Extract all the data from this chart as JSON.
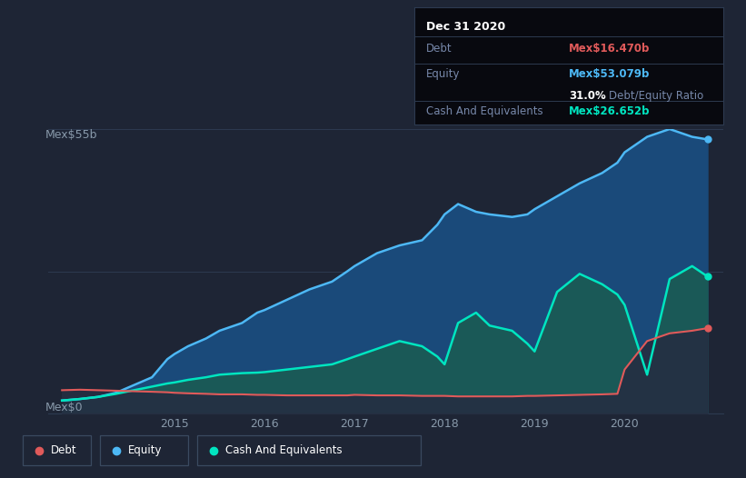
{
  "bg_color": "#1e2535",
  "plot_bg_color": "#1e2535",
  "ylabel_top": "Mex$55b",
  "ylabel_bottom": "Mex$0",
  "x_ticks": [
    2015,
    2016,
    2017,
    2018,
    2019,
    2020
  ],
  "ylim": [
    0,
    55
  ],
  "xlim_start": 2013.6,
  "xlim_end": 2021.1,
  "equity_color": "#4db8f5",
  "equity_fill": "#1a4a7a",
  "debt_color": "#e05a5a",
  "debt_fill": "#2a2035",
  "cash_color": "#00e5c0",
  "cash_fill": "#1a5a55",
  "grid_color": "#2d3a50",
  "tooltip": {
    "date": "Dec 31 2020",
    "debt_label": "Debt",
    "debt_value": "Mex$16.470b",
    "equity_label": "Equity",
    "equity_value": "Mex$53.079b",
    "ratio": "31.0%",
    "ratio_label": "Debt/Equity Ratio",
    "cash_label": "Cash And Equivalents",
    "cash_value": "Mex$26.652b"
  },
  "time_points": [
    2013.75,
    2013.95,
    2014.15,
    2014.35,
    2014.55,
    2014.75,
    2014.92,
    2015.0,
    2015.15,
    2015.35,
    2015.5,
    2015.75,
    2015.92,
    2016.0,
    2016.25,
    2016.5,
    2016.75,
    2016.92,
    2017.0,
    2017.25,
    2017.5,
    2017.75,
    2017.92,
    2018.0,
    2018.15,
    2018.35,
    2018.5,
    2018.75,
    2018.92,
    2019.0,
    2019.25,
    2019.5,
    2019.75,
    2019.92,
    2020.0,
    2020.25,
    2020.5,
    2020.75,
    2020.92
  ],
  "equity_data": [
    2.5,
    2.8,
    3.2,
    4.0,
    5.5,
    7.0,
    10.5,
    11.5,
    13.0,
    14.5,
    16.0,
    17.5,
    19.5,
    20.0,
    22.0,
    24.0,
    25.5,
    27.5,
    28.5,
    31.0,
    32.5,
    33.5,
    36.5,
    38.5,
    40.5,
    39.0,
    38.5,
    38.0,
    38.5,
    39.5,
    42.0,
    44.5,
    46.5,
    48.5,
    50.5,
    53.5,
    55.0,
    53.5,
    53.0
  ],
  "debt_data": [
    4.5,
    4.6,
    4.5,
    4.4,
    4.3,
    4.2,
    4.1,
    4.0,
    3.9,
    3.8,
    3.7,
    3.7,
    3.6,
    3.6,
    3.5,
    3.5,
    3.5,
    3.5,
    3.6,
    3.5,
    3.5,
    3.4,
    3.4,
    3.4,
    3.3,
    3.3,
    3.3,
    3.3,
    3.4,
    3.4,
    3.5,
    3.6,
    3.7,
    3.8,
    8.5,
    14.0,
    15.5,
    16.0,
    16.5
  ],
  "cash_data": [
    2.5,
    2.8,
    3.2,
    3.8,
    4.5,
    5.2,
    5.8,
    6.0,
    6.5,
    7.0,
    7.5,
    7.8,
    7.9,
    8.0,
    8.5,
    9.0,
    9.5,
    10.5,
    11.0,
    12.5,
    14.0,
    13.0,
    11.0,
    9.5,
    17.5,
    19.5,
    17.0,
    16.0,
    13.5,
    12.0,
    23.5,
    27.0,
    25.0,
    23.0,
    21.0,
    7.5,
    26.0,
    28.5,
    26.5
  ]
}
